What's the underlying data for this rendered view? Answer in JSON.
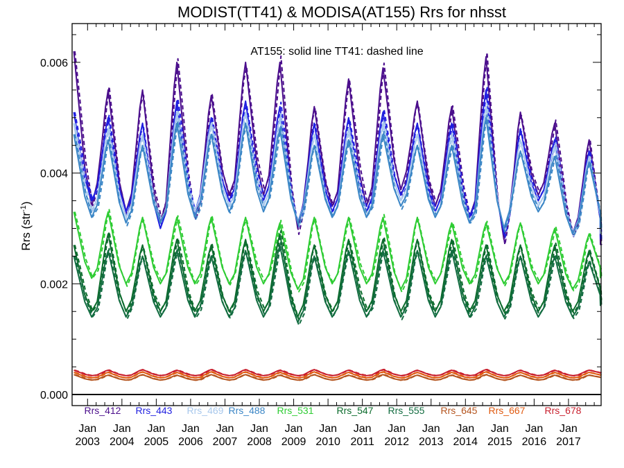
{
  "chart_data": {
    "type": "line",
    "title": "MODIST(TT41) & MODISA(AT155)  Rrs for nhsst",
    "annotation": "AT155: solid line   TT41: dashed line",
    "ylabel": "Rrs (str",
    "ylabel_sup": "-1",
    "ylabel_close": ")",
    "ylim": [
      -0.0002,
      0.0067
    ],
    "xlim": [
      2002.55,
      2017.95
    ],
    "grid": false,
    "y_ticks": [
      {
        "value": 0.0,
        "label": "0.000"
      },
      {
        "value": 0.002,
        "label": "0.002"
      },
      {
        "value": 0.004,
        "label": "0.004"
      },
      {
        "value": 0.006,
        "label": "0.006"
      }
    ],
    "x_ticks": [
      {
        "value": 2003.0,
        "month": "Jan",
        "year": "2003"
      },
      {
        "value": 2004.0,
        "month": "Jan",
        "year": "2004"
      },
      {
        "value": 2005.0,
        "month": "Jan",
        "year": "2005"
      },
      {
        "value": 2006.0,
        "month": "Jan",
        "year": "2006"
      },
      {
        "value": 2007.0,
        "month": "Jan",
        "year": "2007"
      },
      {
        "value": 2008.0,
        "month": "Jan",
        "year": "2008"
      },
      {
        "value": 2009.0,
        "month": "Jan",
        "year": "2009"
      },
      {
        "value": 2010.0,
        "month": "Jan",
        "year": "2010"
      },
      {
        "value": 2011.0,
        "month": "Jan",
        "year": "2011"
      },
      {
        "value": 2012.0,
        "month": "Jan",
        "year": "2012"
      },
      {
        "value": 2013.0,
        "month": "Jan",
        "year": "2013"
      },
      {
        "value": 2014.0,
        "month": "Jan",
        "year": "2014"
      },
      {
        "value": 2015.0,
        "month": "Jan",
        "year": "2015"
      },
      {
        "value": 2016.0,
        "month": "Jan",
        "year": "2016"
      },
      {
        "value": 2017.0,
        "month": "Jan",
        "year": "2017"
      }
    ],
    "legend_placement": "bottom",
    "series": [
      {
        "name": "Rrs_412",
        "color": "#4b0e8c",
        "peaks": [
          0.0062,
          0.0055,
          0.0055,
          0.006,
          0.0054,
          0.006,
          0.006,
          0.0052,
          0.0057,
          0.0059,
          0.0053,
          0.0052,
          0.0061,
          0.0051,
          0.0049,
          0.0046
        ],
        "troughs": [
          0.0034,
          0.0033,
          0.0031,
          0.0032,
          0.0036,
          0.0036,
          0.003,
          0.0034,
          0.0034,
          0.0037,
          0.0034,
          0.0032,
          0.0028,
          0.0036,
          0.0029
        ],
        "end": 0.0027
      },
      {
        "name": "Rrs_443",
        "color": "#1f1fe0",
        "peaks": [
          0.0051,
          0.005,
          0.0049,
          0.0053,
          0.005,
          0.0053,
          0.0052,
          0.0049,
          0.005,
          0.0051,
          0.0049,
          0.0049,
          0.0055,
          0.0048,
          0.0046,
          0.0044
        ],
        "troughs": [
          0.0035,
          0.0033,
          0.003,
          0.0033,
          0.0035,
          0.0035,
          0.0031,
          0.0033,
          0.0033,
          0.0036,
          0.0033,
          0.0032,
          0.0029,
          0.0035,
          0.0029
        ],
        "end": 0.0028
      },
      {
        "name": "Rrs_469",
        "color": "#a8c8ec",
        "peaks": [
          0.0049,
          0.0048,
          0.0047,
          0.0051,
          0.0049,
          0.0051,
          0.005,
          0.0047,
          0.0048,
          0.0049,
          0.0047,
          0.0047,
          0.0052,
          0.0046,
          0.0045,
          0.0043
        ],
        "troughs": [
          0.0033,
          0.0032,
          0.0031,
          0.0033,
          0.0034,
          0.0034,
          0.0031,
          0.0032,
          0.0032,
          0.0035,
          0.0032,
          0.0031,
          0.003,
          0.0034,
          0.0029
        ],
        "end": 0.0029
      },
      {
        "name": "Rrs_488",
        "color": "#3b86c6",
        "peaks": [
          0.0047,
          0.0046,
          0.0045,
          0.0049,
          0.0047,
          0.0049,
          0.0048,
          0.0045,
          0.0046,
          0.0047,
          0.0045,
          0.0045,
          0.005,
          0.0044,
          0.0043,
          0.0042
        ],
        "troughs": [
          0.0032,
          0.0031,
          0.0031,
          0.0032,
          0.0033,
          0.0033,
          0.0031,
          0.0032,
          0.0032,
          0.0034,
          0.0032,
          0.0031,
          0.003,
          0.0033,
          0.0029
        ],
        "end": 0.003
      },
      {
        "name": "Rrs_531",
        "color": "#2ecc33",
        "peaks": [
          0.0033,
          0.0033,
          0.0032,
          0.0032,
          0.0032,
          0.0032,
          0.0031,
          0.0032,
          0.0032,
          0.0032,
          0.0032,
          0.0031,
          0.0031,
          0.0031,
          0.003,
          0.0029
        ],
        "troughs": [
          0.0021,
          0.002,
          0.002,
          0.002,
          0.002,
          0.002,
          0.0019,
          0.002,
          0.002,
          0.0019,
          0.002,
          0.002,
          0.002,
          0.002,
          0.0019
        ],
        "end": 0.0021
      },
      {
        "name": "Rrs_547",
        "color": "#0b6b2c",
        "peaks": [
          0.0027,
          0.0029,
          0.0027,
          0.0028,
          0.0027,
          0.0028,
          0.0029,
          0.0027,
          0.0028,
          0.0028,
          0.0028,
          0.0028,
          0.0027,
          0.0027,
          0.0027,
          0.0026
        ],
        "troughs": [
          0.0015,
          0.0015,
          0.0015,
          0.0015,
          0.0015,
          0.0015,
          0.0014,
          0.0015,
          0.0015,
          0.0015,
          0.0015,
          0.0015,
          0.0015,
          0.0015,
          0.0015
        ],
        "end": 0.0017
      },
      {
        "name": "Rrs_555",
        "color": "#126c40",
        "peaks": [
          0.0025,
          0.0026,
          0.0025,
          0.0026,
          0.0025,
          0.0026,
          0.0027,
          0.0025,
          0.0026,
          0.0026,
          0.0026,
          0.0026,
          0.0025,
          0.0025,
          0.0025,
          0.0024
        ],
        "troughs": [
          0.0014,
          0.0014,
          0.0014,
          0.0014,
          0.0014,
          0.0014,
          0.0013,
          0.0014,
          0.0014,
          0.0014,
          0.0014,
          0.0014,
          0.0014,
          0.0014,
          0.0014
        ],
        "end": 0.0016
      },
      {
        "name": "Rrs_645",
        "color": "#b4541e",
        "peaks": [
          0.00036,
          0.00035,
          0.00036,
          0.00035,
          0.00036,
          0.00036,
          0.00035,
          0.00036,
          0.00035,
          0.00036,
          0.00035,
          0.00035,
          0.00036,
          0.00035,
          0.00035,
          0.00035
        ],
        "troughs": [
          0.00026,
          0.00026,
          0.00026,
          0.00026,
          0.00026,
          0.00026,
          0.00026,
          0.00026,
          0.00026,
          0.00026,
          0.00026,
          0.00026,
          0.00026,
          0.00026,
          0.00026
        ],
        "end": 0.0003
      },
      {
        "name": "Rrs_667",
        "color": "#e05a10",
        "peaks": [
          0.0004,
          0.0004,
          0.00041,
          0.0004,
          0.00041,
          0.00041,
          0.0004,
          0.00041,
          0.0004,
          0.00041,
          0.0004,
          0.0004,
          0.00041,
          0.0004,
          0.0004,
          0.0004
        ],
        "troughs": [
          0.0003,
          0.0003,
          0.0003,
          0.0003,
          0.0003,
          0.0003,
          0.0003,
          0.0003,
          0.0003,
          0.0003,
          0.0003,
          0.0003,
          0.0003,
          0.0003,
          0.0003
        ],
        "end": 0.00034
      },
      {
        "name": "Rrs_678",
        "color": "#c81e2c",
        "peaks": [
          0.00044,
          0.00044,
          0.00045,
          0.00044,
          0.00045,
          0.00045,
          0.00044,
          0.00045,
          0.00044,
          0.00045,
          0.00044,
          0.00044,
          0.00045,
          0.00044,
          0.00044,
          0.00044
        ],
        "troughs": [
          0.00034,
          0.00034,
          0.00034,
          0.00034,
          0.00034,
          0.00034,
          0.00034,
          0.00034,
          0.00034,
          0.00034,
          0.00034,
          0.00034,
          0.00034,
          0.00034,
          0.00034
        ],
        "end": 0.00038
      }
    ]
  }
}
